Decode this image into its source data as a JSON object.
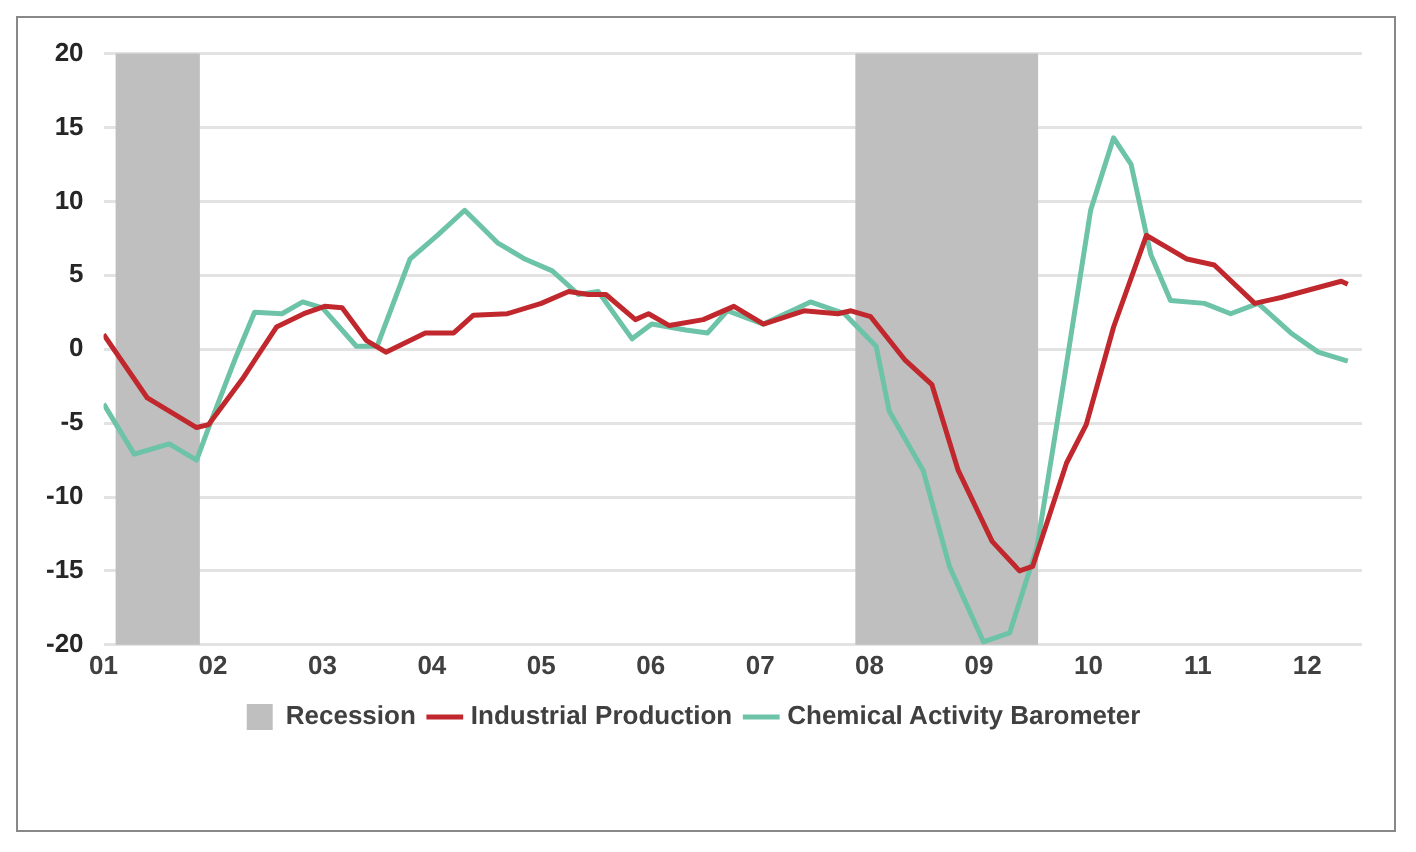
{
  "chart_data": {
    "type": "line",
    "x": [
      2001,
      2001.4,
      2001.85,
      2001.96,
      2002.27,
      2002.58,
      2002.83,
      2003.02,
      2003.18,
      2003.4,
      2003.58,
      2003.94,
      2004.2,
      2004.38,
      2004.69,
      2005,
      2005.25,
      2005.43,
      2005.59,
      2005.86,
      2005.98,
      2006.17,
      2006.48,
      2006.76,
      2007.03,
      2007.4,
      2007.71,
      2007.83,
      2008.01,
      2008.32,
      2008.57,
      2008.81,
      2009.12,
      2009.37,
      2009.49,
      2009.8,
      2009.98,
      2010.23,
      2010.53,
      2010.9,
      2011.15,
      2011.52,
      2011.76,
      2012.31,
      2012.37
    ],
    "series": [
      {
        "name": "Industrial Production",
        "color": "#c0282d",
        "values": [
          1,
          -3.3,
          -5.3,
          -5.1,
          -2,
          1.5,
          2.4,
          2.9,
          2.8,
          0.6,
          -0.2,
          1.1,
          1.1,
          2.3,
          2.4,
          3.1,
          3.9,
          3.7,
          3.7,
          2,
          2.4,
          1.6,
          2,
          2.9,
          1.7,
          2.6,
          2.4,
          2.6,
          2.2,
          -0.7,
          -2.4,
          -8.2,
          -13,
          -15,
          -14.7,
          -7.7,
          -5.1,
          1.5,
          7.7,
          6.1,
          5.7,
          3.1,
          3.5,
          4.6,
          4.4
        ]
      },
      {
        "name": "Chemical Activity Barometer",
        "color": "#6cc3a8",
        "x": [
          2001,
          2001.28,
          2001.6,
          2001.85,
          2001.96,
          2002.2,
          2002.38,
          2002.63,
          2002.82,
          2003,
          2003.31,
          2003.5,
          2003.8,
          2004.05,
          2004.3,
          2004.6,
          2004.85,
          2005.1,
          2005.34,
          2005.52,
          2005.83,
          2006.01,
          2006.32,
          2006.52,
          2006.7,
          2007.03,
          2007.46,
          2007.77,
          2008.06,
          2008.18,
          2008.49,
          2008.73,
          2009.04,
          2009.28,
          2009.53,
          2009.77,
          2010.02,
          2010.23,
          2010.39,
          2010.57,
          2010.75,
          2011.06,
          2011.3,
          2011.55,
          2011.85,
          2012.1,
          2012.37
        ],
        "values": [
          -3.7,
          -7.1,
          -6.4,
          -7.5,
          -5.3,
          -0.7,
          2.5,
          2.4,
          3.2,
          2.8,
          0.2,
          0.2,
          6.1,
          7.7,
          9.4,
          7.2,
          6.1,
          5.3,
          3.7,
          3.9,
          0.7,
          1.7,
          1.3,
          1.1,
          2.6,
          1.7,
          3.2,
          2.4,
          0.2,
          -4.2,
          -8.2,
          -14.7,
          -19.8,
          -19.2,
          -13.4,
          -2.4,
          9.4,
          14.3,
          12.5,
          6.4,
          3.3,
          3.1,
          2.4,
          3.1,
          1.1,
          -0.2,
          -0.8
        ]
      }
    ],
    "bands": [
      {
        "axis": "x",
        "from": 2001.11,
        "to": 2001.88,
        "label": "Recession",
        "color": "#bfbfbf"
      },
      {
        "axis": "x",
        "from": 2007.87,
        "to": 2009.54,
        "color": "#bfbfbf"
      }
    ],
    "xlim": [
      2001,
      2012.5
    ],
    "xticks": [
      {
        "value": 2001,
        "label": "01"
      },
      {
        "value": 2002,
        "label": "02"
      },
      {
        "value": 2003,
        "label": "03"
      },
      {
        "value": 2004,
        "label": "04"
      },
      {
        "value": 2005,
        "label": "05"
      },
      {
        "value": 2006,
        "label": "06"
      },
      {
        "value": 2007,
        "label": "07"
      },
      {
        "value": 2008,
        "label": "08"
      },
      {
        "value": 2009,
        "label": "09"
      },
      {
        "value": 2010,
        "label": "10"
      },
      {
        "value": 2011,
        "label": "11"
      },
      {
        "value": 2012,
        "label": "12"
      }
    ],
    "ylim": [
      -20,
      20
    ],
    "yticks": [
      -20,
      -15,
      -10,
      -5,
      0,
      5,
      10,
      15,
      20
    ],
    "grid": "y",
    "legend": "bottom",
    "marker": "none",
    "line_style": "solid"
  }
}
